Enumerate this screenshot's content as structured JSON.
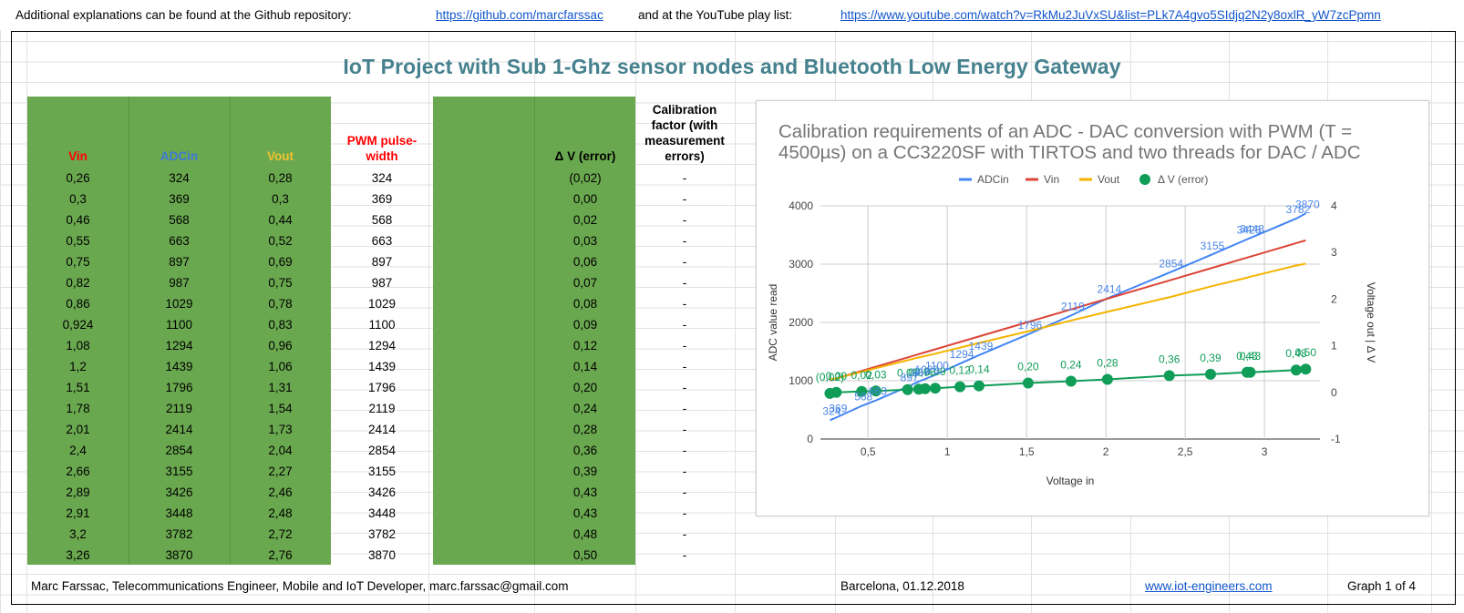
{
  "header": {
    "note1": "Additional explanations can be found at the Github repository:",
    "github_link": "https://github.com/marcfarssac",
    "note2": "and at the YouTube play list:",
    "youtube_link": "https://www.youtube.com/watch?v=RkMu2JuVxSU&list=PLk7A4gvo5SIdjq2N2y8oxlR_yW7zcPpmn"
  },
  "title": "IoT Project with Sub 1-Ghz sensor nodes and Bluetooth Low Energy Gateway",
  "table": {
    "headers": {
      "vin": "Vin",
      "adcin": "ADCin",
      "vout": "Vout",
      "pwm": "PWM pulse-width",
      "dv": "Δ V (error)",
      "cal": "Calibration factor (with measurement errors)"
    },
    "colors": {
      "vin": "#ff0000",
      "adcin": "#3c78d8",
      "vout": "#f1c232",
      "pwm": "#ff0000",
      "green": "#6aa84f"
    },
    "rows": [
      {
        "vin": "0,26",
        "adc": "324",
        "vout": "0,28",
        "pwm": "324",
        "dv": "(0,02)",
        "cal": "-"
      },
      {
        "vin": "0,3",
        "adc": "369",
        "vout": "0,3",
        "pwm": "369",
        "dv": "0,00",
        "cal": "-"
      },
      {
        "vin": "0,46",
        "adc": "568",
        "vout": "0,44",
        "pwm": "568",
        "dv": "0,02",
        "cal": "-"
      },
      {
        "vin": "0,55",
        "adc": "663",
        "vout": "0,52",
        "pwm": "663",
        "dv": "0,03",
        "cal": "-"
      },
      {
        "vin": "0,75",
        "adc": "897",
        "vout": "0,69",
        "pwm": "897",
        "dv": "0,06",
        "cal": "-"
      },
      {
        "vin": "0,82",
        "adc": "987",
        "vout": "0,75",
        "pwm": "987",
        "dv": "0,07",
        "cal": "-"
      },
      {
        "vin": "0,86",
        "adc": "1029",
        "vout": "0,78",
        "pwm": "1029",
        "dv": "0,08",
        "cal": "-"
      },
      {
        "vin": "0,924",
        "adc": "1100",
        "vout": "0,83",
        "pwm": "1100",
        "dv": "0,09",
        "cal": "-"
      },
      {
        "vin": "1,08",
        "adc": "1294",
        "vout": "0,96",
        "pwm": "1294",
        "dv": "0,12",
        "cal": "-"
      },
      {
        "vin": "1,2",
        "adc": "1439",
        "vout": "1,06",
        "pwm": "1439",
        "dv": "0,14",
        "cal": "-"
      },
      {
        "vin": "1,51",
        "adc": "1796",
        "vout": "1,31",
        "pwm": "1796",
        "dv": "0,20",
        "cal": "-"
      },
      {
        "vin": "1,78",
        "adc": "2119",
        "vout": "1,54",
        "pwm": "2119",
        "dv": "0,24",
        "cal": "-"
      },
      {
        "vin": "2,01",
        "adc": "2414",
        "vout": "1,73",
        "pwm": "2414",
        "dv": "0,28",
        "cal": "-"
      },
      {
        "vin": "2,4",
        "adc": "2854",
        "vout": "2,04",
        "pwm": "2854",
        "dv": "0,36",
        "cal": "-"
      },
      {
        "vin": "2,66",
        "adc": "3155",
        "vout": "2,27",
        "pwm": "3155",
        "dv": "0,39",
        "cal": "-"
      },
      {
        "vin": "2,89",
        "adc": "3426",
        "vout": "2,46",
        "pwm": "3426",
        "dv": "0,43",
        "cal": "-"
      },
      {
        "vin": "2,91",
        "adc": "3448",
        "vout": "2,48",
        "pwm": "3448",
        "dv": "0,43",
        "cal": "-"
      },
      {
        "vin": "3,2",
        "adc": "3782",
        "vout": "2,72",
        "pwm": "3782",
        "dv": "0,48",
        "cal": "-"
      },
      {
        "vin": "3,26",
        "adc": "3870",
        "vout": "2,76",
        "pwm": "3870",
        "dv": "0,50",
        "cal": "-"
      }
    ]
  },
  "chart_data": {
    "type": "line",
    "title": "Calibration requirements of an ADC - DAC conversion with PWM (T = 4500µs) on a CC3220SF with TIRTOS and two threads for DAC / ADC",
    "xlabel": "Voltage in",
    "ylabel": "ADC value read",
    "y2label": "Voltage out | Δ V",
    "xticks": [
      "0,5",
      "1",
      "1,5",
      "2",
      "2,5",
      "3"
    ],
    "xtick_values": [
      0.5,
      1,
      1.5,
      2,
      2.5,
      3
    ],
    "yticks": [
      "0",
      "1000",
      "2000",
      "3000",
      "4000"
    ],
    "y2ticks": [
      "-1",
      "0",
      "1",
      "2",
      "3",
      "4"
    ],
    "xlim": [
      0.2,
      3.35
    ],
    "ylim": [
      0,
      4000
    ],
    "y2lim": [
      -1,
      4
    ],
    "legend_position": "top",
    "x": [
      0.26,
      0.3,
      0.46,
      0.55,
      0.75,
      0.82,
      0.86,
      0.924,
      1.08,
      1.2,
      1.51,
      1.78,
      2.01,
      2.4,
      2.66,
      2.89,
      2.91,
      3.2,
      3.26
    ],
    "series": [
      {
        "name": "ADCin",
        "axis": "left",
        "color": "#4285f4",
        "kind": "line",
        "values": [
          324,
          369,
          568,
          663,
          897,
          987,
          1029,
          1100,
          1294,
          1439,
          1796,
          2119,
          2414,
          2854,
          3155,
          3426,
          3448,
          3782,
          3870
        ],
        "labels": [
          "324",
          "369",
          "568",
          "663",
          "897",
          "987",
          "1029",
          "1100",
          "1294",
          "1439",
          "1796",
          "2119",
          "2414",
          "2854",
          "3155",
          "3426",
          "3448",
          "3782",
          "3870"
        ]
      },
      {
        "name": "Vin",
        "axis": "right",
        "color": "#db4437",
        "kind": "line",
        "values": [
          0.26,
          0.3,
          0.46,
          0.55,
          0.75,
          0.82,
          0.86,
          0.924,
          1.08,
          1.2,
          1.51,
          1.78,
          2.01,
          2.4,
          2.66,
          2.89,
          2.91,
          3.2,
          3.26
        ]
      },
      {
        "name": "Vout",
        "axis": "right",
        "color": "#f4b400",
        "kind": "line",
        "values": [
          0.28,
          0.3,
          0.44,
          0.52,
          0.69,
          0.75,
          0.78,
          0.83,
          0.96,
          1.06,
          1.31,
          1.54,
          1.73,
          2.04,
          2.27,
          2.46,
          2.48,
          2.72,
          2.76
        ]
      },
      {
        "name": "Δ V (error)",
        "axis": "right",
        "color": "#0f9d58",
        "kind": "line-points",
        "values": [
          -0.02,
          0.0,
          0.02,
          0.03,
          0.06,
          0.07,
          0.08,
          0.09,
          0.12,
          0.14,
          0.2,
          0.24,
          0.28,
          0.36,
          0.39,
          0.43,
          0.43,
          0.48,
          0.5
        ],
        "labels": [
          "(0,02)",
          "0,00",
          "0,02",
          "0,03",
          "0,06",
          "0,07",
          "0,08",
          "0,09",
          "0,12",
          "0,14",
          "0,20",
          "0,24",
          "0,28",
          "0,36",
          "0,39",
          "0,43",
          "0,43",
          "0,48",
          "0,50"
        ]
      }
    ]
  },
  "footer": {
    "author": "Marc Farssac, Telecommunications Engineer, Mobile and IoT Developer, marc.farssac@gmail.com",
    "place_date": "Barcelona, 01.12.2018",
    "site": "www.iot-engineers.com",
    "graph": "Graph 1 of 4"
  }
}
